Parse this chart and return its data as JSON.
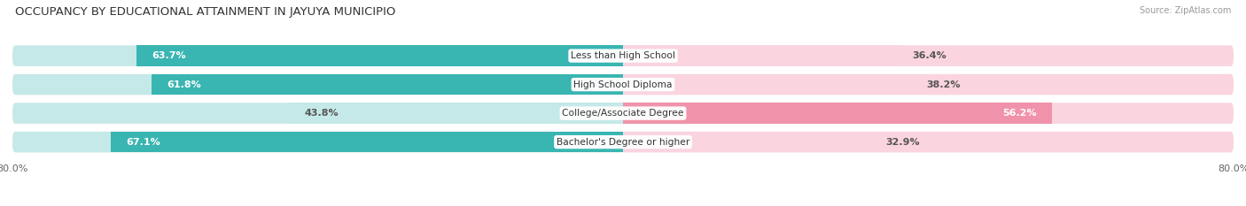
{
  "title": "OCCUPANCY BY EDUCATIONAL ATTAINMENT IN JAYUYA MUNICIPIO",
  "source": "Source: ZipAtlas.com",
  "categories": [
    "Less than High School",
    "High School Diploma",
    "College/Associate Degree",
    "Bachelor's Degree or higher"
  ],
  "owner_pct": [
    63.7,
    61.8,
    43.8,
    67.1
  ],
  "renter_pct": [
    36.4,
    38.2,
    56.2,
    32.9
  ],
  "owner_color": "#39b5b2",
  "renter_color": "#f093aa",
  "owner_color_light": "#c5e9e8",
  "renter_color_light": "#fad4df",
  "row_bg_color": "#f2f2f2",
  "row_bg_alt": "#e8e8e8",
  "axis_min": -80.0,
  "axis_max": 80.0,
  "title_fontsize": 9.5,
  "source_fontsize": 7,
  "label_fontsize": 8,
  "tick_fontsize": 8,
  "legend_fontsize": 8,
  "x_ticks": [
    -80.0,
    80.0
  ],
  "x_tick_labels": [
    "80.0%",
    "80.0%"
  ]
}
